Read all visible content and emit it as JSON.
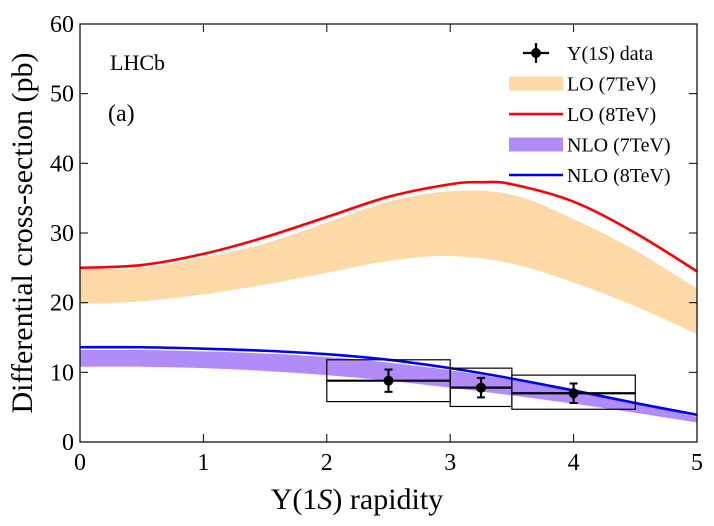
{
  "chart_data": {
    "type": "line",
    "title": "",
    "xlabel": "Υ(1S) rapidity",
    "ylabel": "Differential cross-section (pb)",
    "xlim": [
      0,
      5
    ],
    "ylim": [
      0,
      60
    ],
    "xticks": [
      "0",
      "1",
      "2",
      "3",
      "4",
      "5"
    ],
    "yticks": [
      "0",
      "10",
      "20",
      "30",
      "40",
      "50",
      "60"
    ],
    "annotations": [
      "LHCb",
      "(a)"
    ],
    "series": [
      {
        "name": "LO (7TeV)",
        "kind": "band",
        "color": "#fdd9a8",
        "x": [
          0,
          0.5,
          1.0,
          1.5,
          2.0,
          2.5,
          3.0,
          3.5,
          4.0,
          4.5,
          5.0
        ],
        "lower": [
          19.8,
          20.2,
          21.2,
          22.6,
          24.3,
          26.0,
          26.7,
          25.6,
          22.9,
          19.5,
          15.5
        ],
        "upper": [
          24.8,
          25.0,
          26.5,
          28.5,
          31.5,
          34.5,
          36.0,
          35.5,
          32.0,
          27.5,
          22.0
        ]
      },
      {
        "name": "LO (8TeV)",
        "kind": "line",
        "color": "#ff0000",
        "x": [
          0,
          0.5,
          1.0,
          1.5,
          2.0,
          2.5,
          3.0,
          3.25,
          3.5,
          4.0,
          4.5,
          5.0
        ],
        "y": [
          25.0,
          25.4,
          27.0,
          29.4,
          32.3,
          35.2,
          37.0,
          37.3,
          37.0,
          34.5,
          30.0,
          24.5
        ]
      },
      {
        "name": "NLO (7TeV)",
        "kind": "band",
        "color": "#b18cf8",
        "x": [
          0,
          0.5,
          1.0,
          1.5,
          2.0,
          2.5,
          3.0,
          3.5,
          4.0,
          4.5,
          5.0
        ],
        "lower": [
          10.8,
          10.8,
          10.6,
          10.2,
          9.6,
          8.8,
          7.8,
          6.7,
          5.5,
          4.2,
          2.8
        ],
        "upper": [
          13.2,
          13.2,
          13.0,
          12.7,
          12.2,
          11.4,
          10.3,
          8.9,
          7.3,
          5.5,
          3.6
        ]
      },
      {
        "name": "NLO (8TeV)",
        "kind": "line",
        "color": "#0000ff",
        "x": [
          0,
          0.5,
          1.0,
          1.5,
          2.0,
          2.5,
          3.0,
          3.5,
          4.0,
          4.5,
          5.0
        ],
        "y": [
          13.6,
          13.6,
          13.4,
          13.1,
          12.6,
          11.8,
          10.6,
          9.1,
          7.4,
          5.6,
          3.9
        ]
      },
      {
        "name": "Υ(1S) data",
        "kind": "points",
        "color": "#000000",
        "points": [
          {
            "x": 2.5,
            "xlo": 2.0,
            "xhi": 3.0,
            "y": 8.8,
            "yerr": 1.6,
            "syslo": 5.8,
            "syshi": 11.8
          },
          {
            "x": 3.25,
            "xlo": 3.0,
            "xhi": 3.5,
            "y": 7.8,
            "yerr": 1.4,
            "syslo": 5.1,
            "syshi": 10.6
          },
          {
            "x": 4.0,
            "xlo": 3.5,
            "xhi": 4.5,
            "y": 7.0,
            "yerr": 1.4,
            "syslo": 4.7,
            "syshi": 9.6
          }
        ]
      }
    ],
    "legend": {
      "placement": "top-right",
      "entries": [
        {
          "label_main": "Υ(1",
          "label_ital": "S",
          "label_tail": ") data",
          "kind": "points",
          "color": "#000000"
        },
        {
          "label": "LO (7TeV)",
          "kind": "band",
          "color": "#fdd9a8"
        },
        {
          "label": "LO (8TeV)",
          "kind": "line",
          "color": "#ff0000"
        },
        {
          "label": "NLO (7TeV)",
          "kind": "band",
          "color": "#b18cf8"
        },
        {
          "label": "NLO (8TeV)",
          "kind": "line",
          "color": "#0000ff"
        }
      ]
    }
  }
}
